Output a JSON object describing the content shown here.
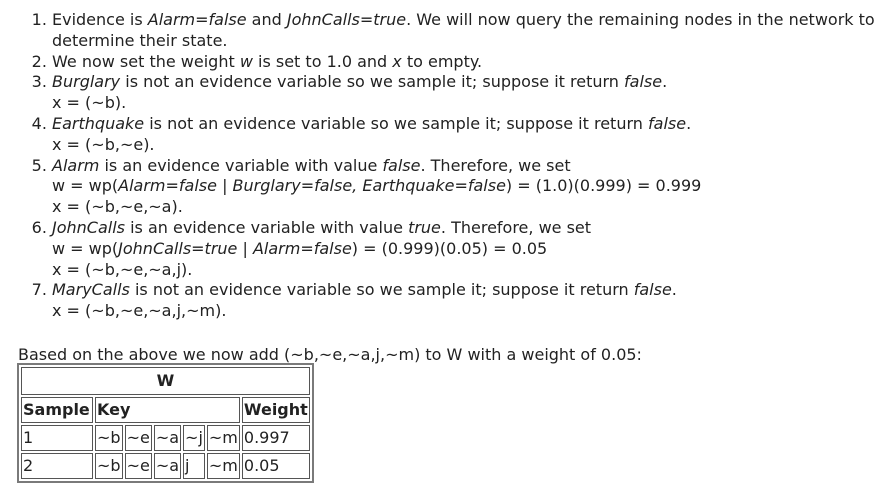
{
  "steps": [
    {
      "parts": [
        {
          "t": "Evidence is "
        },
        {
          "t": "Alarm=false",
          "i": true
        },
        {
          "t": " and "
        },
        {
          "t": "JohnCalls=true",
          "i": true
        },
        {
          "t": ".   We will now query the remaining nodes in the network to determine their state."
        }
      ],
      "lines": []
    },
    {
      "parts": [
        {
          "t": "We now set the weight "
        },
        {
          "t": "w",
          "i": true
        },
        {
          "t": " is set to 1.0 and "
        },
        {
          "t": "x",
          "i": true
        },
        {
          "t": " to empty."
        }
      ],
      "lines": []
    },
    {
      "parts": [
        {
          "t": "Burglary",
          "i": true
        },
        {
          "t": " is not an evidence variable so we sample it; suppose it return "
        },
        {
          "t": "false",
          "i": true
        },
        {
          "t": "."
        }
      ],
      "lines": [
        "x = (~b)."
      ]
    },
    {
      "parts": [
        {
          "t": "Earthquake",
          "i": true
        },
        {
          "t": " is not an evidence variable so we sample it; suppose it return "
        },
        {
          "t": "false",
          "i": true
        },
        {
          "t": "."
        }
      ],
      "lines": [
        "x = (~b,~e)."
      ]
    },
    {
      "parts": [
        {
          "t": "Alarm",
          "i": true
        },
        {
          "t": " is an evidence variable with value "
        },
        {
          "t": "false",
          "i": true
        },
        {
          "t": ".   Therefore, we set"
        }
      ],
      "lines": [
        [
          {
            "t": "w = wp("
          },
          {
            "t": "Alarm=false | Burglary=false, Earthquake=false",
            "i": true
          },
          {
            "t": ") = (1.0)(0.999) = 0.999"
          }
        ],
        "x = (~b,~e,~a)."
      ]
    },
    {
      "parts": [
        {
          "t": "JohnCalls",
          "i": true
        },
        {
          "t": " is an evidence variable with value "
        },
        {
          "t": "true",
          "i": true
        },
        {
          "t": ".   Therefore, we set"
        }
      ],
      "lines": [
        [
          {
            "t": "w = wp("
          },
          {
            "t": "JohnCalls=true | Alarm=false",
            "i": true
          },
          {
            "t": ") = (0.999)(0.05) = 0.05"
          }
        ],
        "x = (~b,~e,~a,j)."
      ]
    },
    {
      "parts": [
        {
          "t": "MaryCalls",
          "i": true
        },
        {
          "t": " is not an evidence variable so we sample it; suppose it return "
        },
        {
          "t": "false",
          "i": true
        },
        {
          "t": "."
        }
      ],
      "lines": [
        "x = (~b,~e,~a,j,~m)."
      ]
    }
  ],
  "intro": "Based on the above we now add (~b,~e,~a,j,~m) to W with a weight of 0.05:",
  "table": {
    "title": "W",
    "headers": [
      "Sample",
      "Key",
      "Weight"
    ],
    "rows": [
      {
        "sample": "1",
        "key": [
          "~b",
          "~e",
          "~a",
          "~j",
          "~m"
        ],
        "weight": "0.997"
      },
      {
        "sample": "2",
        "key": [
          "~b",
          "~e",
          "~a",
          "j",
          "~m"
        ],
        "weight": "0.05"
      }
    ]
  }
}
